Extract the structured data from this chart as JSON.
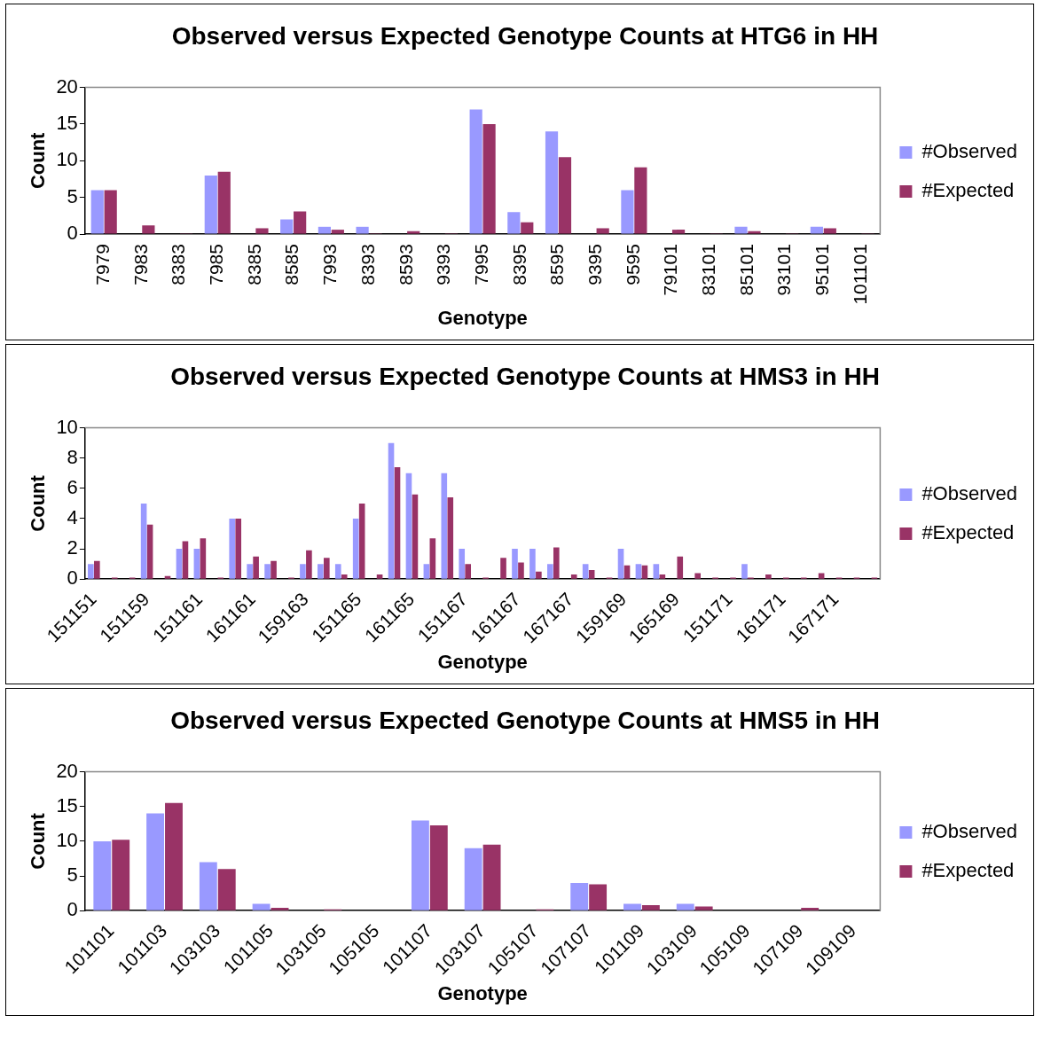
{
  "chart_data": [
    {
      "type": "bar",
      "title": "Observed versus Expected Genotype Counts at HTG6 in HH",
      "xlabel": "Genotype",
      "ylabel": "Count",
      "categories": [
        "7979",
        "7983",
        "8383",
        "7985",
        "8385",
        "8585",
        "7993",
        "8393",
        "8593",
        "9393",
        "7995",
        "8395",
        "8595",
        "9395",
        "9595",
        "79101",
        "83101",
        "85101",
        "93101",
        "95101",
        "101101"
      ],
      "series": [
        {
          "name": "#Observed",
          "color": "#9999ff",
          "values": [
            6,
            0,
            0,
            8,
            0,
            2,
            1,
            1,
            0,
            0,
            17,
            3,
            14,
            0,
            6,
            0,
            0,
            1,
            0,
            1,
            0
          ]
        },
        {
          "name": "#Expected",
          "color": "#993366",
          "values": [
            6,
            1.2,
            0.1,
            8.5,
            0.8,
            3.1,
            0.6,
            0.1,
            0.4,
            0.1,
            15,
            1.6,
            10.5,
            0.8,
            9.1,
            0.6,
            0.1,
            0.4,
            0.1,
            0.8,
            0.1
          ]
        }
      ],
      "ylim": [
        0,
        20
      ],
      "yticks": [
        0,
        5,
        10,
        15,
        20
      ],
      "grid": false,
      "legend": "right"
    },
    {
      "type": "bar",
      "title": "Observed versus Expected Genotype Counts at HMS3 in HH",
      "xlabel": "Genotype",
      "ylabel": "Count",
      "categories": [
        "151151",
        null,
        null,
        "151159",
        null,
        null,
        "151161",
        null,
        null,
        "161161",
        null,
        null,
        "159163",
        null,
        null,
        "151165",
        null,
        null,
        "161165",
        null,
        null,
        "151167",
        null,
        null,
        "161167",
        null,
        null,
        "167167",
        null,
        null,
        "159169",
        null,
        null,
        "165169",
        null,
        null,
        "151171",
        null,
        null,
        "161171",
        null,
        null,
        "167171",
        null,
        null
      ],
      "series": [
        {
          "name": "#Observed",
          "color": "#9999ff",
          "values": [
            1,
            0,
            0,
            5,
            0,
            2,
            2,
            0,
            4,
            1,
            1,
            0,
            1,
            1,
            1,
            4,
            0,
            9,
            7,
            1,
            7,
            2,
            0,
            0,
            2,
            2,
            1,
            0,
            1,
            0,
            2,
            1,
            1,
            0,
            0,
            0,
            0,
            1,
            0,
            0,
            0,
            0,
            0,
            0,
            0
          ]
        },
        {
          "name": "#Expected",
          "color": "#993366",
          "values": [
            1.2,
            0.1,
            0.1,
            3.6,
            0.2,
            2.5,
            2.7,
            0.1,
            4,
            1.5,
            1.2,
            0.1,
            1.9,
            1.4,
            0.3,
            5,
            0.3,
            7.4,
            5.6,
            2.7,
            5.4,
            1,
            0.1,
            1.4,
            1.1,
            0.5,
            2.1,
            0.3,
            0.6,
            0.1,
            0.9,
            0.9,
            0.3,
            1.5,
            0.4,
            0.1,
            0.1,
            0.1,
            0.3,
            0.1,
            0.1,
            0.4,
            0.1,
            0.1,
            0.1
          ]
        }
      ],
      "ylim": [
        0,
        10
      ],
      "yticks": [
        0,
        2,
        4,
        6,
        8,
        10
      ],
      "grid": false,
      "legend": "right"
    },
    {
      "type": "bar",
      "title": "Observed versus Expected Genotype Counts at HMS5 in HH",
      "xlabel": "Genotype",
      "ylabel": "Count",
      "categories": [
        "101101",
        "101103",
        "103103",
        "101105",
        "103105",
        "105105",
        "101107",
        "103107",
        "105107",
        "107107",
        "101109",
        "103109",
        "105109",
        "107109",
        "109109"
      ],
      "series": [
        {
          "name": "#Observed",
          "color": "#9999ff",
          "values": [
            10,
            14,
            7,
            1,
            0,
            0,
            13,
            9,
            0,
            4,
            1,
            1,
            0,
            0,
            0
          ]
        },
        {
          "name": "#Expected",
          "color": "#993366",
          "values": [
            10.2,
            15.5,
            6,
            0.4,
            0.2,
            0,
            12.3,
            9.5,
            0.2,
            3.8,
            0.8,
            0.6,
            0,
            0.4,
            0
          ]
        }
      ],
      "ylim": [
        0,
        20
      ],
      "yticks": [
        0,
        5,
        10,
        15,
        20
      ],
      "grid": false,
      "legend": "right"
    }
  ]
}
